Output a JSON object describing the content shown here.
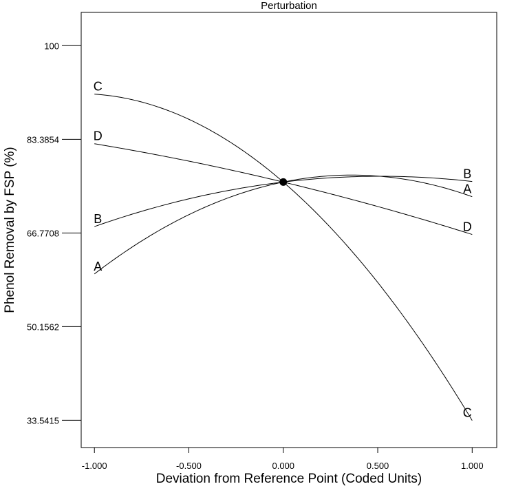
{
  "chart_data": {
    "type": "line",
    "title": "Perturbation",
    "xlabel": "Deviation from Reference Point (Coded Units)",
    "ylabel": "Phenol Removal by FSP (%)",
    "xlim": [
      -1.07,
      1.13
    ],
    "ylim": [
      28.7,
      105.9
    ],
    "x_ticks": [
      -1.0,
      -0.5,
      0.0,
      0.5,
      1.0
    ],
    "x_tick_labels": [
      "-1.000",
      "-0.500",
      "0.000",
      "0.500",
      "1.000"
    ],
    "y_ticks": [
      33.5415,
      50.1562,
      66.7708,
      83.3854,
      100
    ],
    "y_tick_labels": [
      "33.5415",
      "50.1562",
      "66.7708",
      "83.3854",
      "100"
    ],
    "grid": false,
    "reference_point": {
      "x": 0.0,
      "y": 75.8
    },
    "series": [
      {
        "name": "A",
        "x": [
          -1.0,
          -0.5,
          0.0,
          0.5,
          1.0
        ],
        "y": [
          59.5,
          70.3,
          75.8,
          76.1,
          73.2
        ]
      },
      {
        "name": "B",
        "x": [
          -1.0,
          -0.5,
          0.0,
          0.5,
          1.0
        ],
        "y": [
          67.9,
          72.3,
          75.8,
          76.0,
          75.9
        ]
      },
      {
        "name": "C",
        "x": [
          -1.0,
          -0.5,
          0.0,
          0.5,
          1.0
        ],
        "y": [
          91.4,
          87.4,
          75.8,
          58.1,
          33.5
        ]
      },
      {
        "name": "D",
        "x": [
          -1.0,
          -0.5,
          0.0,
          0.5,
          1.0
        ],
        "y": [
          82.6,
          79.1,
          75.8,
          71.1,
          66.5
        ]
      }
    ]
  }
}
